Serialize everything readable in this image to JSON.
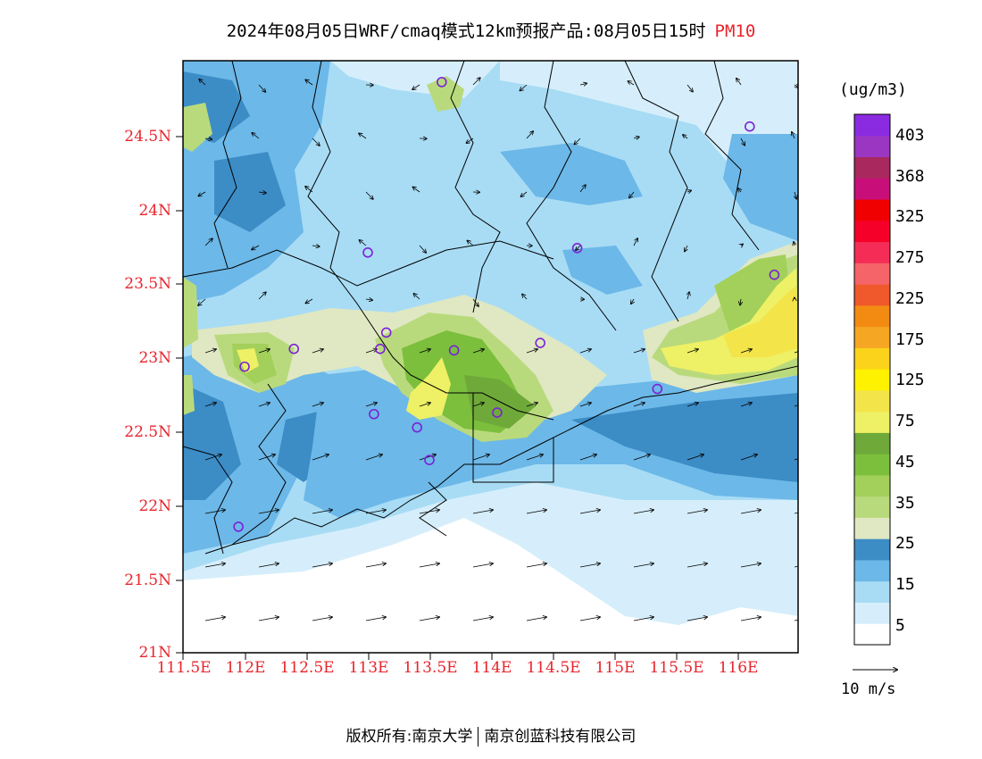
{
  "title": {
    "text": "2024年08月05日WRF/cmaq模式12km预报产品:08月05日15时",
    "species": "PM10"
  },
  "colors": {
    "label_red": "#e8242c",
    "frame": "#000000"
  },
  "map": {
    "lat_labels": [
      "24.5N",
      "24N",
      "23.5N",
      "23N",
      "22.5N",
      "22N",
      "21.5N",
      "21N"
    ],
    "lon_labels": [
      "111.5E",
      "112E",
      "112.5E",
      "113E",
      "113.5E",
      "114E",
      "114.5E",
      "115E",
      "115.5E",
      "116E"
    ],
    "stations": [
      {
        "lon": 113.6,
        "lat": 24.85
      },
      {
        "lon": 116.1,
        "lat": 24.55
      },
      {
        "lon": 113.0,
        "lat": 23.7
      },
      {
        "lon": 114.7,
        "lat": 23.73
      },
      {
        "lon": 116.3,
        "lat": 23.55
      },
      {
        "lon": 112.0,
        "lat": 22.93
      },
      {
        "lon": 112.4,
        "lat": 23.05
      },
      {
        "lon": 113.1,
        "lat": 23.05
      },
      {
        "lon": 113.15,
        "lat": 23.16
      },
      {
        "lon": 113.7,
        "lat": 23.04
      },
      {
        "lon": 114.4,
        "lat": 23.09
      },
      {
        "lon": 113.05,
        "lat": 22.61
      },
      {
        "lon": 113.4,
        "lat": 22.52
      },
      {
        "lon": 114.05,
        "lat": 22.62
      },
      {
        "lon": 113.5,
        "lat": 22.3
      },
      {
        "lon": 115.35,
        "lat": 22.78
      },
      {
        "lon": 111.95,
        "lat": 21.85
      }
    ]
  },
  "colorbar": {
    "unit": "(ug/m3)",
    "levels": [
      {
        "color": "#ffffff"
      },
      {
        "color": "#d6eefb"
      },
      {
        "color": "#a8dcf5"
      },
      {
        "color": "#6cb8e8"
      },
      {
        "color": "#3c8cc6",
        "label": "15"
      },
      {
        "color": "#dfe8c2",
        "label": "25"
      },
      {
        "color": "#b9da7c",
        "label": "35"
      },
      {
        "color": "#a3d05a"
      },
      {
        "color": "#7bbf3c"
      },
      {
        "color": "#6ea93a",
        "label": "45"
      },
      {
        "color": "#eef065"
      },
      {
        "color": "#f3e44a",
        "label": "75"
      },
      {
        "color": "#fff200",
        "label": "125"
      },
      {
        "color": "#fad31a"
      },
      {
        "color": "#f5a623",
        "label": "175"
      },
      {
        "color": "#f38b13"
      },
      {
        "color": "#f0592b",
        "label": "225"
      },
      {
        "color": "#f46469",
        "label": "275"
      },
      {
        "color": "#f52d56"
      },
      {
        "color": "#f50029",
        "label": "325"
      },
      {
        "color": "#f00000"
      },
      {
        "color": "#c80f79",
        "label": "368"
      },
      {
        "color": "#a9285e"
      },
      {
        "color": "#9a36c2",
        "label": "403"
      },
      {
        "color": "#8a2be2"
      }
    ],
    "tick_labels": [
      "403",
      "368",
      "325",
      "275",
      "225",
      "175",
      "125",
      "75",
      "45",
      "35",
      "25",
      "15",
      "5"
    ]
  },
  "wind_legend": {
    "label": "10 m/s"
  },
  "footer": {
    "left": "版权所有:南京大学",
    "right": "南京创蓝科技有限公司"
  }
}
